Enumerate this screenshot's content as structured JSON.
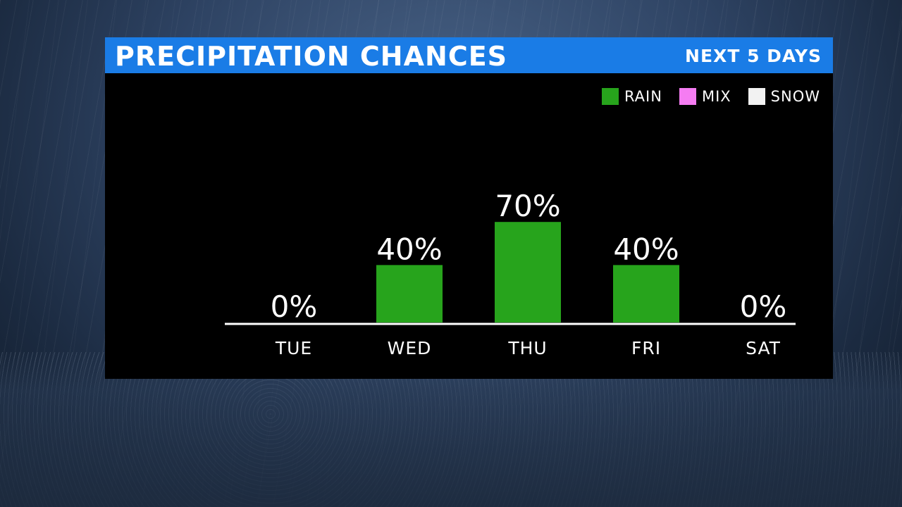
{
  "header": {
    "title": "PRECIPITATION CHANCES",
    "subtitle": "NEXT 5 DAYS"
  },
  "legend": [
    {
      "label": "RAIN",
      "color": "#27a41c"
    },
    {
      "label": "MIX",
      "color": "#f57cf2"
    },
    {
      "label": "SNOW",
      "color": "#f2f2f2"
    }
  ],
  "chart_data": {
    "type": "bar",
    "categories": [
      "TUE",
      "WED",
      "THU",
      "FRI",
      "SAT"
    ],
    "values": [
      0,
      40,
      70,
      40,
      0
    ],
    "value_labels": [
      "0%",
      "40%",
      "70%",
      "40%",
      "0%"
    ],
    "series": [
      {
        "name": "RAIN",
        "values": [
          0,
          40,
          70,
          40,
          0
        ],
        "color": "#27a41c"
      }
    ],
    "title": "PRECIPITATION CHANCES",
    "subtitle": "NEXT 5 DAYS",
    "ylim": [
      0,
      100
    ],
    "grid": false,
    "legend_position": "top-right"
  }
}
